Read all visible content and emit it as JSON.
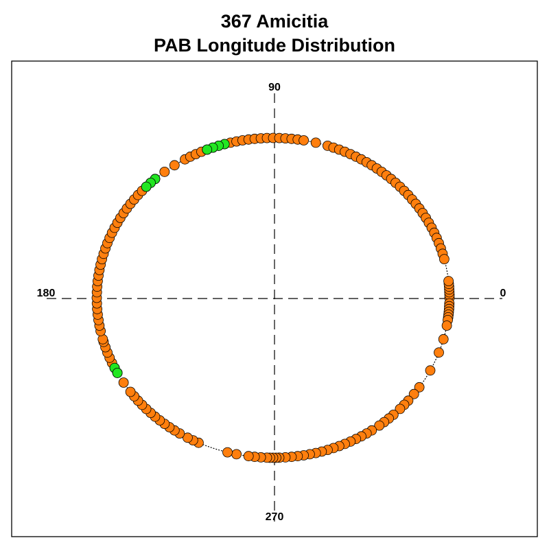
{
  "chart_data": {
    "type": "scatter",
    "projection": "polar",
    "title": "367 Amicitia",
    "subtitle": "PAB Longitude Distribution",
    "angle_labels": {
      "right": "0",
      "top": "90",
      "left": "180",
      "bottom": "270"
    },
    "grid": true,
    "colors": {
      "points": "#ff7f0e",
      "highlight": "#22e622",
      "outline": "#000000",
      "frame": "#000000"
    },
    "series": [
      {
        "marker": "orange",
        "longitudes_deg": [
          0,
          1,
          2,
          3,
          4,
          5,
          6,
          358,
          357,
          356,
          355,
          354,
          353,
          352,
          350,
          345,
          340,
          333,
          326,
          323,
          320,
          318,
          316,
          313,
          311,
          309,
          307,
          304,
          302,
          300,
          298,
          296,
          294,
          292,
          290,
          288,
          286,
          284,
          282,
          280,
          278,
          276,
          274,
          272,
          271,
          270,
          269,
          268,
          266,
          264,
          262,
          258,
          255,
          245,
          243,
          241,
          238,
          236,
          234,
          232,
          230,
          228,
          226,
          224,
          222,
          220,
          218,
          216,
          212,
          208,
          206,
          204,
          202,
          200,
          198,
          196,
          195,
          192,
          190,
          188,
          186,
          184,
          182,
          180,
          178,
          176,
          174,
          172,
          170,
          168,
          166,
          164,
          162,
          160,
          158,
          156,
          154,
          152,
          150,
          148,
          146,
          144,
          142,
          140,
          138,
          136,
          134,
          132,
          128,
          124,
          120,
          118,
          116,
          114,
          112,
          110,
          108,
          106,
          104,
          102,
          100,
          98,
          96,
          94,
          92,
          90,
          88,
          86,
          84,
          82,
          80,
          76,
          72,
          70,
          68,
          66,
          64,
          62,
          60,
          58,
          56,
          54,
          52,
          50,
          48,
          46,
          44,
          42,
          40,
          38,
          36,
          34,
          32,
          30,
          28,
          26,
          24,
          22,
          20,
          18,
          16,
          14
        ]
      },
      {
        "marker": "green",
        "longitudes_deg": [
          106,
          108,
          110,
          112,
          132,
          134,
          136,
          206,
          208
        ]
      }
    ]
  }
}
